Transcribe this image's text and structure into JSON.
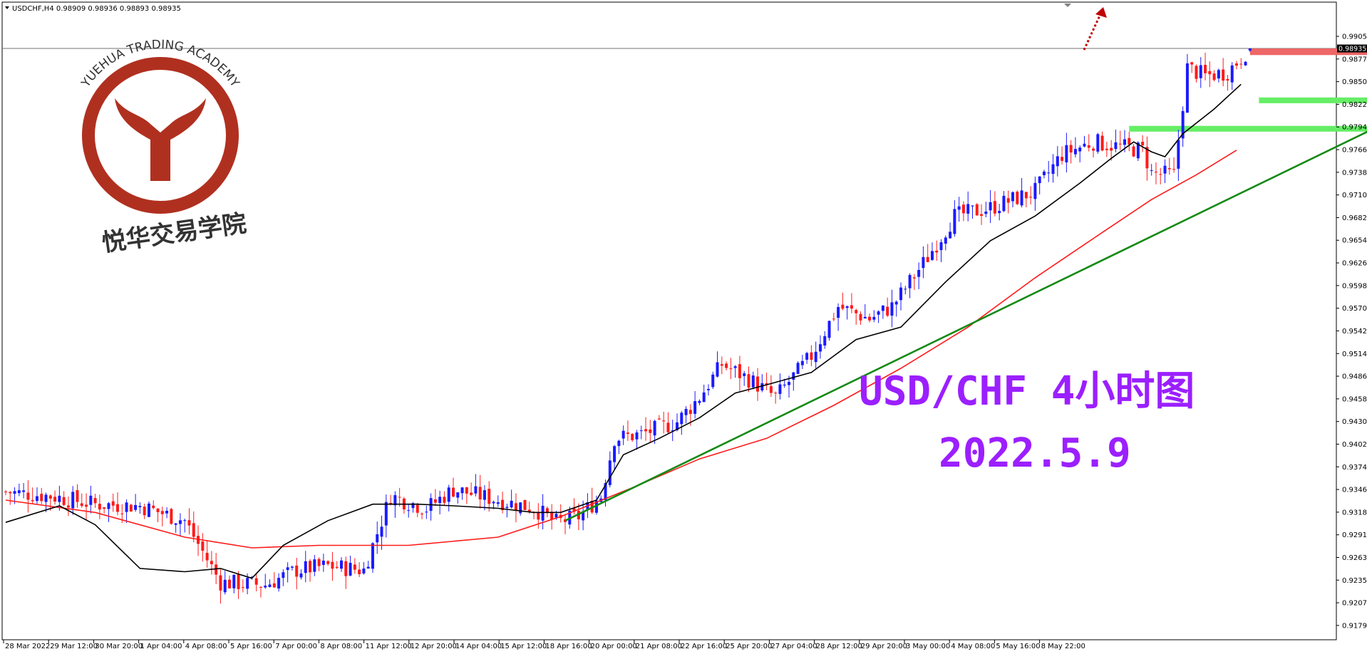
{
  "window": {
    "header": "USDCHF,H4  0.98909 0.98936 0.98893 0.98935"
  },
  "watermark": {
    "logo_text_en": "YUEHUA TRADING ACADEMY",
    "logo_text_cn": "悦华交易学院"
  },
  "annotation": {
    "title": "USD/CHF 4小时图",
    "date": "2022.5.9",
    "color": "#9b1fff"
  },
  "colors": {
    "bull": "#1a1aff",
    "bear": "#ff1a1a",
    "ma_fast": "#000000",
    "ma_slow": "#ff1a1a",
    "trendline": "#148a14",
    "support_zone": "#66ee66",
    "resistance_zone": "#ee6666"
  },
  "chart_data": {
    "type": "candlestick",
    "symbol": "USDCHF",
    "timeframe": "H4",
    "ohlc": {
      "open": 0.98909,
      "high": 0.98936,
      "low": 0.98893,
      "close": 0.98935
    },
    "current_price_label": "0.98935",
    "ylim": [
      0.9179,
      0.9922
    ],
    "y_ticks": [
      "0.99055",
      "0.98775",
      "0.98500",
      "0.98220",
      "0.97940",
      "0.97660",
      "0.97380",
      "0.97100",
      "0.96820",
      "0.96540",
      "0.96260",
      "0.95980",
      "0.95700",
      "0.95425",
      "0.95145",
      "0.94865",
      "0.94585",
      "0.94305",
      "0.94025",
      "0.93745",
      "0.93465",
      "0.93185",
      "0.92910",
      "0.92630",
      "0.92350",
      "0.92070",
      "0.91790"
    ],
    "x_ticks": [
      "28 Mar 2022",
      "29 Mar 12:00",
      "30 Mar 20:00",
      "1 Apr 04:00",
      "4 Apr 08:00",
      "5 Apr 16:00",
      "7 Apr 00:00",
      "8 Apr 08:00",
      "11 Apr 12:00",
      "12 Apr 20:00",
      "14 Apr 04:00",
      "15 Apr 12:00",
      "18 Apr 16:00",
      "20 Apr 00:00",
      "21 Apr 08:00",
      "22 Apr 16:00",
      "25 Apr 20:00",
      "27 Apr 04:00",
      "28 Apr 12:00",
      "29 Apr 20:00",
      "3 May 00:00",
      "4 May 08:00",
      "5 May 16:00",
      "8 May 22:00"
    ],
    "price_path": [
      [
        0,
        0.9355
      ],
      [
        10,
        0.935
      ],
      [
        20,
        0.934
      ],
      [
        30,
        0.9338
      ],
      [
        40,
        0.932
      ],
      [
        48,
        0.9245
      ],
      [
        58,
        0.9242
      ],
      [
        65,
        0.926
      ],
      [
        72,
        0.9265
      ],
      [
        80,
        0.926
      ],
      [
        86,
        0.935
      ],
      [
        94,
        0.9335
      ],
      [
        100,
        0.9358
      ],
      [
        110,
        0.9345
      ],
      [
        118,
        0.9335
      ],
      [
        123,
        0.9318
      ],
      [
        128,
        0.9325
      ],
      [
        133,
        0.935
      ],
      [
        136,
        0.942
      ],
      [
        142,
        0.9425
      ],
      [
        150,
        0.944
      ],
      [
        155,
        0.947
      ],
      [
        160,
        0.951
      ],
      [
        166,
        0.9492
      ],
      [
        172,
        0.947
      ],
      [
        180,
        0.952
      ],
      [
        186,
        0.958
      ],
      [
        193,
        0.9565
      ],
      [
        198,
        0.958
      ],
      [
        206,
        0.964
      ],
      [
        212,
        0.969
      ],
      [
        220,
        0.97
      ],
      [
        230,
        0.972
      ],
      [
        236,
        0.9765
      ],
      [
        243,
        0.978
      ],
      [
        248,
        0.9775
      ],
      [
        254,
        0.977
      ],
      [
        256,
        0.9742
      ],
      [
        261,
        0.974
      ],
      [
        264,
        0.987
      ],
      [
        268,
        0.986
      ],
      [
        273,
        0.9865
      ],
      [
        278,
        0.9894
      ]
    ],
    "ma_fast": {
      "name": "",
      "period_hint": "short",
      "points": [
        [
          0,
          0.9318
        ],
        [
          12,
          0.9338
        ],
        [
          20,
          0.9315
        ],
        [
          30,
          0.9262
        ],
        [
          40,
          0.9258
        ],
        [
          48,
          0.9262
        ],
        [
          55,
          0.925
        ],
        [
          62,
          0.929
        ],
        [
          72,
          0.932
        ],
        [
          82,
          0.934
        ],
        [
          92,
          0.934
        ],
        [
          100,
          0.9338
        ],
        [
          110,
          0.9335
        ],
        [
          118,
          0.933
        ],
        [
          124,
          0.933
        ],
        [
          132,
          0.9345
        ],
        [
          138,
          0.94
        ],
        [
          146,
          0.942
        ],
        [
          155,
          0.9445
        ],
        [
          163,
          0.9475
        ],
        [
          170,
          0.9485
        ],
        [
          180,
          0.95
        ],
        [
          190,
          0.954
        ],
        [
          200,
          0.9555
        ],
        [
          210,
          0.961
        ],
        [
          220,
          0.966
        ],
        [
          230,
          0.969
        ],
        [
          240,
          0.973
        ],
        [
          247,
          0.976
        ],
        [
          252,
          0.978
        ],
        [
          256,
          0.9768
        ],
        [
          259,
          0.9762
        ],
        [
          263,
          0.979
        ],
        [
          270,
          0.982
        ],
        [
          276,
          0.985
        ]
      ]
    },
    "ma_slow": {
      "name": "",
      "period_hint": "long",
      "points": [
        [
          0,
          0.9345
        ],
        [
          20,
          0.933
        ],
        [
          40,
          0.93
        ],
        [
          55,
          0.9287
        ],
        [
          70,
          0.929
        ],
        [
          90,
          0.929
        ],
        [
          110,
          0.93
        ],
        [
          124,
          0.9325
        ],
        [
          140,
          0.936
        ],
        [
          155,
          0.9395
        ],
        [
          170,
          0.942
        ],
        [
          185,
          0.946
        ],
        [
          200,
          0.9505
        ],
        [
          215,
          0.9555
        ],
        [
          230,
          0.9615
        ],
        [
          245,
          0.967
        ],
        [
          256,
          0.971
        ],
        [
          266,
          0.974
        ],
        [
          275,
          0.977
        ]
      ]
    },
    "trendline": {
      "from": [
        125,
        0.932
      ],
      "to": [
        320,
        0.9834
      ]
    },
    "zones": [
      {
        "kind": "resistance",
        "from_x": 278,
        "to_x": 370,
        "y_low": 0.98855,
        "y_high": 0.98935
      },
      {
        "kind": "support",
        "from_x": 280,
        "to_x": 370,
        "y_low": 0.9827,
        "y_high": 0.9834
      },
      {
        "kind": "support",
        "from_x": 251,
        "to_x": 370,
        "y_low": 0.97925,
        "y_high": 0.97995
      }
    ],
    "grid": false,
    "legend": "none"
  }
}
